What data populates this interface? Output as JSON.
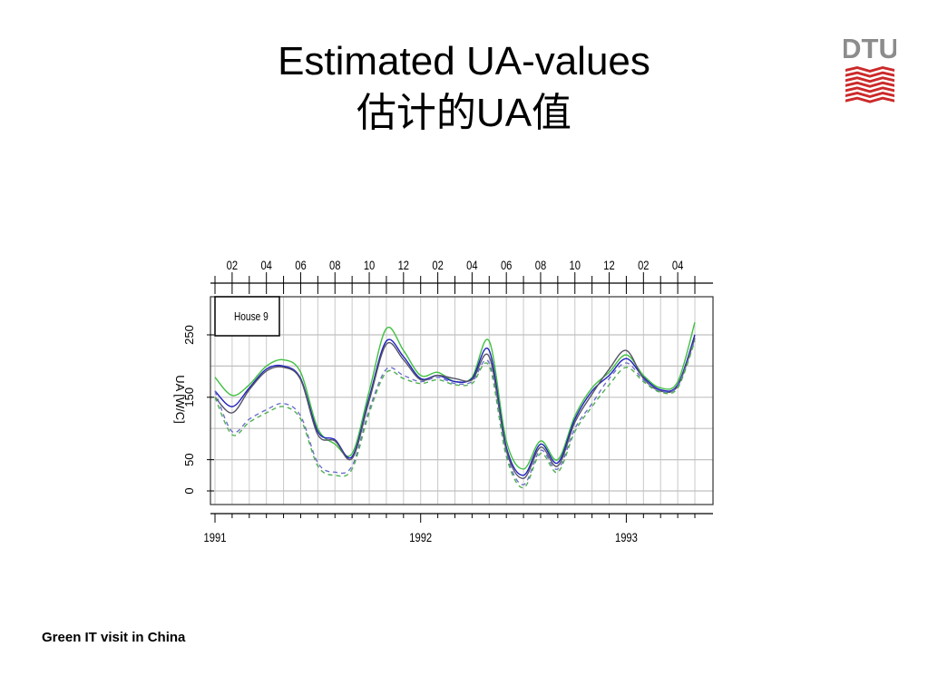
{
  "slide": {
    "title_line1": "Estimated UA-values",
    "title_line2": "估计的UA值",
    "footer": "Green IT visit in China",
    "logo_text": "DTU",
    "logo_color": "#cc2929",
    "logo_text_color": "#8c8c8c"
  },
  "chart_data": {
    "type": "line",
    "title": "",
    "panel_label": "House 9",
    "ylabel": "UA [W/C]",
    "xlabel": "",
    "ylim": [
      0,
      250
    ],
    "yticks": [
      0,
      50,
      150,
      250
    ],
    "grid": true,
    "x_range": [
      "1991-01",
      "1993-05"
    ],
    "month_ticks": [
      "02",
      "04",
      "06",
      "08",
      "10",
      "12",
      "02",
      "04",
      "06",
      "08",
      "10",
      "12",
      "02",
      "04"
    ],
    "year_ticks": [
      "1991",
      "1992",
      "1993"
    ],
    "series": [
      {
        "style": "solid",
        "color": "#40c040",
        "points": [
          [
            "1991-01",
            182
          ],
          [
            "1991-02",
            153
          ],
          [
            "1991-03",
            170
          ],
          [
            "1991-04",
            200
          ],
          [
            "1991-05",
            210
          ],
          [
            "1991-06",
            190
          ],
          [
            "1991-07",
            100
          ],
          [
            "1991-08",
            75
          ],
          [
            "1991-09",
            60
          ],
          [
            "1991-10",
            160
          ],
          [
            "1991-11",
            260
          ],
          [
            "1991-12",
            225
          ],
          [
            "1992-01",
            185
          ],
          [
            "1992-02",
            190
          ],
          [
            "1992-03",
            175
          ],
          [
            "1992-04",
            182
          ],
          [
            "1992-05",
            240
          ],
          [
            "1992-06",
            80
          ],
          [
            "1992-07",
            35
          ],
          [
            "1992-08",
            80
          ],
          [
            "1992-09",
            50
          ],
          [
            "1992-10",
            120
          ],
          [
            "1992-11",
            165
          ],
          [
            "1992-12",
            190
          ],
          [
            "1993-01",
            218
          ],
          [
            "1993-02",
            185
          ],
          [
            "1993-03",
            165
          ],
          [
            "1993-04",
            175
          ],
          [
            "1993-05",
            270
          ]
        ]
      },
      {
        "style": "solid",
        "color": "#2020c0",
        "points": [
          [
            "1991-01",
            160
          ],
          [
            "1991-02",
            135
          ],
          [
            "1991-03",
            165
          ],
          [
            "1991-04",
            195
          ],
          [
            "1991-05",
            200
          ],
          [
            "1991-06",
            180
          ],
          [
            "1991-07",
            95
          ],
          [
            "1991-08",
            82
          ],
          [
            "1991-09",
            55
          ],
          [
            "1991-10",
            150
          ],
          [
            "1991-11",
            240
          ],
          [
            "1991-12",
            215
          ],
          [
            "1992-01",
            180
          ],
          [
            "1992-02",
            185
          ],
          [
            "1992-03",
            175
          ],
          [
            "1992-04",
            180
          ],
          [
            "1992-05",
            225
          ],
          [
            "1992-06",
            70
          ],
          [
            "1992-07",
            25
          ],
          [
            "1992-08",
            75
          ],
          [
            "1992-09",
            45
          ],
          [
            "1992-10",
            115
          ],
          [
            "1992-11",
            160
          ],
          [
            "1992-12",
            185
          ],
          [
            "1993-01",
            212
          ],
          [
            "1993-02",
            182
          ],
          [
            "1993-03",
            162
          ],
          [
            "1993-04",
            170
          ],
          [
            "1993-05",
            250
          ]
        ]
      },
      {
        "style": "solid",
        "color": "#555566",
        "points": [
          [
            "1991-01",
            150
          ],
          [
            "1991-02",
            125
          ],
          [
            "1991-03",
            162
          ],
          [
            "1991-04",
            192
          ],
          [
            "1991-05",
            198
          ],
          [
            "1991-06",
            178
          ],
          [
            "1991-07",
            90
          ],
          [
            "1991-08",
            80
          ],
          [
            "1991-09",
            52
          ],
          [
            "1991-10",
            145
          ],
          [
            "1991-11",
            235
          ],
          [
            "1991-12",
            210
          ],
          [
            "1992-01",
            178
          ],
          [
            "1992-02",
            185
          ],
          [
            "1992-03",
            180
          ],
          [
            "1992-04",
            178
          ],
          [
            "1992-05",
            215
          ],
          [
            "1992-06",
            65
          ],
          [
            "1992-07",
            20
          ],
          [
            "1992-08",
            70
          ],
          [
            "1992-09",
            40
          ],
          [
            "1992-10",
            110
          ],
          [
            "1992-11",
            155
          ],
          [
            "1992-12",
            195
          ],
          [
            "1993-01",
            225
          ],
          [
            "1993-02",
            180
          ],
          [
            "1993-03",
            160
          ],
          [
            "1993-04",
            168
          ],
          [
            "1993-05",
            245
          ]
        ]
      },
      {
        "style": "dashed",
        "color": "#7070d0",
        "points": [
          [
            "1991-01",
            160
          ],
          [
            "1991-02",
            95
          ],
          [
            "1991-03",
            115
          ],
          [
            "1991-04",
            130
          ],
          [
            "1991-05",
            140
          ],
          [
            "1991-06",
            120
          ],
          [
            "1991-07",
            45
          ],
          [
            "1991-08",
            30
          ],
          [
            "1991-09",
            40
          ],
          [
            "1991-10",
            130
          ],
          [
            "1991-11",
            195
          ],
          [
            "1991-12",
            185
          ],
          [
            "1992-01",
            175
          ],
          [
            "1992-02",
            182
          ],
          [
            "1992-03",
            172
          ],
          [
            "1992-04",
            175
          ],
          [
            "1992-05",
            205
          ],
          [
            "1992-06",
            60
          ],
          [
            "1992-07",
            10
          ],
          [
            "1992-08",
            65
          ],
          [
            "1992-09",
            35
          ],
          [
            "1992-10",
            100
          ],
          [
            "1992-11",
            140
          ],
          [
            "1992-12",
            180
          ],
          [
            "1993-01",
            205
          ],
          [
            "1993-02",
            178
          ],
          [
            "1993-03",
            160
          ],
          [
            "1993-04",
            168
          ],
          [
            "1993-05",
            242
          ]
        ]
      },
      {
        "style": "dashed",
        "color": "#50b050",
        "points": [
          [
            "1991-01",
            150
          ],
          [
            "1991-02",
            90
          ],
          [
            "1991-03",
            110
          ],
          [
            "1991-04",
            125
          ],
          [
            "1991-05",
            135
          ],
          [
            "1991-06",
            115
          ],
          [
            "1991-07",
            40
          ],
          [
            "1991-08",
            25
          ],
          [
            "1991-09",
            35
          ],
          [
            "1991-10",
            125
          ],
          [
            "1991-11",
            190
          ],
          [
            "1991-12",
            180
          ],
          [
            "1992-01",
            172
          ],
          [
            "1992-02",
            178
          ],
          [
            "1992-03",
            170
          ],
          [
            "1992-04",
            172
          ],
          [
            "1992-05",
            200
          ],
          [
            "1992-06",
            55
          ],
          [
            "1992-07",
            5
          ],
          [
            "1992-08",
            60
          ],
          [
            "1992-09",
            30
          ],
          [
            "1992-10",
            95
          ],
          [
            "1992-11",
            135
          ],
          [
            "1992-12",
            170
          ],
          [
            "1993-01",
            198
          ],
          [
            "1993-02",
            175
          ],
          [
            "1993-03",
            158
          ],
          [
            "1993-04",
            165
          ],
          [
            "1993-05",
            240
          ]
        ]
      }
    ]
  }
}
